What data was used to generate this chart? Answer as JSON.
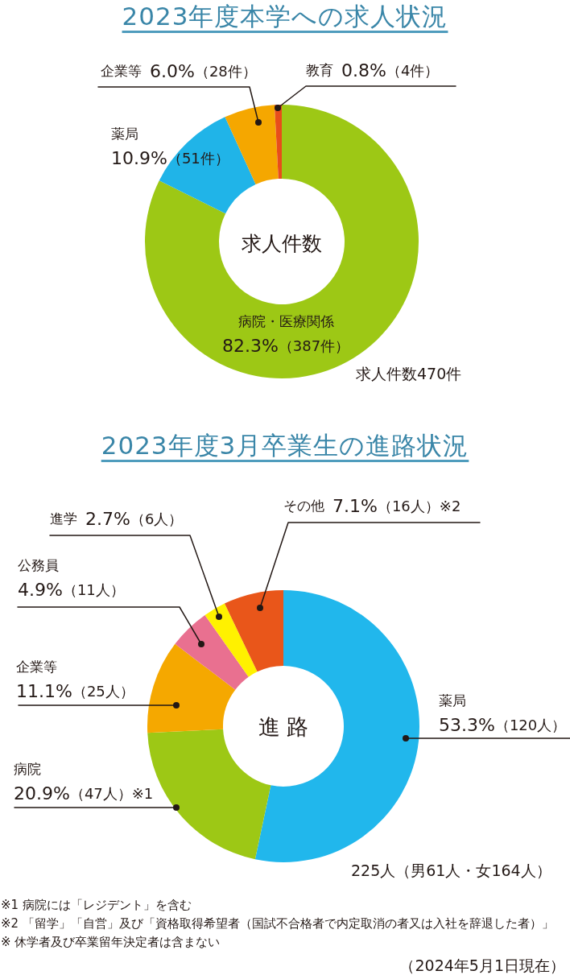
{
  "chart_data": [
    {
      "type": "donut",
      "title": "2023年度本学への求人状況",
      "categories": [
        "病院・医療関係",
        "薬局",
        "企業等",
        "教育"
      ],
      "values": [
        387,
        51,
        28,
        4
      ],
      "colors": [
        "#9dc815",
        "#20b4e8",
        "#f5a700",
        "#e84e1b"
      ],
      "value_labels": [
        "82.3%（387件）",
        "10.9%（51件）",
        "6.0%（28件）",
        "0.8%（4件）"
      ],
      "annotations": [
        "求人件数",
        "求人件数470件"
      ]
    },
    {
      "type": "donut",
      "title": "2023年度3月卒業生の進路状況",
      "categories": [
        "薬局",
        "病院",
        "企業等",
        "公務員",
        "進学",
        "その他"
      ],
      "values": [
        120,
        47,
        25,
        11,
        6,
        16
      ],
      "colors": [
        "#21b7ec",
        "#9dc815",
        "#f5a800",
        "#e97090",
        "#fff100",
        "#e9561a"
      ],
      "value_labels": [
        "53.3%（120人）",
        "20.9%（47人）※1",
        "11.1%（25人）",
        "4.9%（11人）",
        "2.7%（6人）",
        "7.1%（16人）※2"
      ],
      "annotations": [
        "進 路",
        "225人（男61人・女164人）",
        "※1 病院には「レジデント」を含む",
        "※2 「留学」「自営」及び「資格取得希望者（国試不合格者で内定取消の者又は入社を辞退した者）」",
        "※ 休学者及び卒業留年決定者は含まない",
        "（2024年5月1日現在）"
      ]
    }
  ]
}
